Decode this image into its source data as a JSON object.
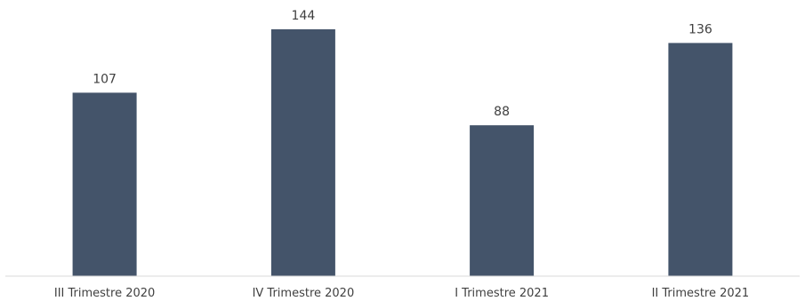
{
  "chart_data": {
    "type": "bar",
    "categories": [
      "III Trimestre 2020",
      "IV Trimestre 2020",
      "I Trimestre 2021",
      "II Trimestre 2021"
    ],
    "values": [
      107,
      144,
      88,
      136
    ],
    "title": "",
    "xlabel": "",
    "ylabel": "",
    "ylim": [
      0,
      155
    ],
    "grid": false,
    "legend": "none",
    "bar_color": "#44546a",
    "label_color": "#404040",
    "axis_color": "#d9d9d9"
  }
}
